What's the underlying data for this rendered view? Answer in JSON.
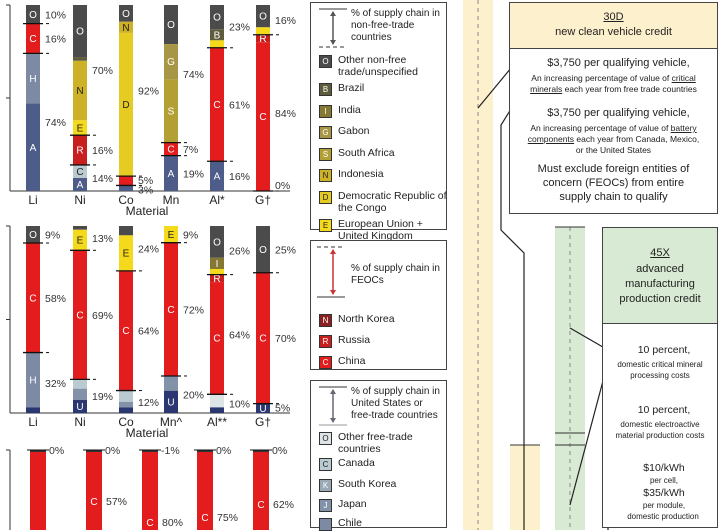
{
  "colors": {
    "O": "#4b4b4b",
    "B": "#5e5c3c",
    "I": "#857832",
    "G": "#a69645",
    "S": "#b3a035",
    "N": "#cdb126",
    "D": "#e6cb22",
    "E": "#f5da1c",
    "NK": "#8b2020",
    "R": "#c81e1e",
    "C": "#e31d1d",
    "FO": "#dce4e6",
    "FC": "#b9cbd0",
    "K": "#9aa9b6",
    "J": "#8292a9",
    "H": "#7c8aa4",
    "A": "#4d5c89",
    "U": "#2b3770",
    "cap": "#333333"
  },
  "chart_data": [
    {
      "type": "bar",
      "stacked": true,
      "xlabel": "Material",
      "ylim": [
        0,
        100
      ],
      "categories": [
        "Li",
        "Ni",
        "Co",
        "Mn",
        "Al*",
        "G†"
      ],
      "bars": [
        {
          "segs": [
            {
              "k": "O",
              "v": 10,
              "l": "O"
            },
            {
              "k": "C",
              "v": 16,
              "l": "C"
            },
            {
              "k": "H",
              "v": 27,
              "l": "H"
            },
            {
              "k": "A",
              "v": 47,
              "l": "A"
            }
          ],
          "groups": [
            [
              "10%",
              1
            ],
            [
              "16%",
              1
            ],
            [
              "74%",
              2
            ]
          ]
        },
        {
          "segs": [
            {
              "k": "O",
              "v": 28,
              "l": "O"
            },
            {
              "k": "B",
              "v": 2,
              "l": ""
            },
            {
              "k": "N",
              "v": 32,
              "l": "N"
            },
            {
              "k": "E",
              "v": 8,
              "l": "E"
            },
            {
              "k": "R",
              "v": 16,
              "l": "R"
            },
            {
              "k": "FC",
              "v": 7,
              "l": "C"
            },
            {
              "k": "A",
              "v": 7,
              "l": "A"
            }
          ],
          "groups": [
            [
              "70%",
              4
            ],
            [
              "16%",
              1
            ],
            [
              "14%",
              2
            ]
          ]
        },
        {
          "segs": [
            {
              "k": "O",
              "v": 9,
              "l": "O"
            },
            {
              "k": "N",
              "v": 6,
              "l": "N"
            },
            {
              "k": "D",
              "v": 77,
              "l": "D"
            },
            {
              "k": "C",
              "v": 5,
              "l": ""
            },
            {
              "k": "A",
              "v": 3,
              "l": ""
            }
          ],
          "groups": [
            [
              "92%",
              3
            ],
            [
              "5%",
              1
            ],
            [
              "3%",
              1
            ]
          ]
        },
        {
          "segs": [
            {
              "k": "O",
              "v": 21,
              "l": "O"
            },
            {
              "k": "G",
              "v": 19,
              "l": "G"
            },
            {
              "k": "S",
              "v": 34,
              "l": "S"
            },
            {
              "k": "C",
              "v": 7,
              "l": "C"
            },
            {
              "k": "A",
              "v": 19,
              "l": "A"
            }
          ],
          "groups": [
            [
              "74%",
              3
            ],
            [
              "7%",
              1
            ],
            [
              "19%",
              1
            ]
          ]
        },
        {
          "segs": [
            {
              "k": "O",
              "v": 13,
              "l": "O"
            },
            {
              "k": "B",
              "v": 6,
              "l": "B"
            },
            {
              "k": "E",
              "v": 4,
              "l": ""
            },
            {
              "k": "C",
              "v": 61,
              "l": "C"
            },
            {
              "k": "A",
              "v": 16,
              "l": "A"
            }
          ],
          "groups": [
            [
              "23%",
              3
            ],
            [
              "61%",
              1
            ],
            [
              "16%",
              1
            ]
          ]
        },
        {
          "segs": [
            {
              "k": "O",
              "v": 12,
              "l": "O"
            },
            {
              "k": "E",
              "v": 4,
              "l": ""
            },
            {
              "k": "R",
              "v": 4,
              "l": "R"
            },
            {
              "k": "C",
              "v": 80,
              "l": "C"
            }
          ],
          "groups": [
            [
              "16%",
              2
            ],
            [
              "84%",
              2
            ],
            [
              "0%",
              0
            ]
          ]
        }
      ]
    },
    {
      "type": "bar",
      "stacked": true,
      "xlabel": "Material",
      "ylim": [
        0,
        100
      ],
      "categories": [
        "Li",
        "Ni",
        "Co",
        "Mn^",
        "Al**",
        "G†"
      ],
      "bars": [
        {
          "segs": [
            {
              "k": "O",
              "v": 9,
              "l": "O"
            },
            {
              "k": "C",
              "v": 58,
              "l": "C"
            },
            {
              "k": "H",
              "v": 29,
              "l": "H"
            },
            {
              "k": "U",
              "v": 3,
              "l": ""
            }
          ],
          "groups": [
            [
              "9%",
              1
            ],
            [
              "58%",
              1
            ],
            [
              "32%",
              2
            ]
          ]
        },
        {
          "segs": [
            {
              "k": "O",
              "v": 2,
              "l": ""
            },
            {
              "k": "E",
              "v": 11,
              "l": "E"
            },
            {
              "k": "C",
              "v": 69,
              "l": "C"
            },
            {
              "k": "FC",
              "v": 5,
              "l": ""
            },
            {
              "k": "J",
              "v": 6,
              "l": ""
            },
            {
              "k": "U",
              "v": 7,
              "l": "U"
            }
          ],
          "groups": [
            [
              "13%",
              2
            ],
            [
              "69%",
              1
            ],
            [
              "19%",
              3
            ]
          ]
        },
        {
          "segs": [
            {
              "k": "O",
              "v": 5,
              "l": ""
            },
            {
              "k": "E",
              "v": 19,
              "l": "E"
            },
            {
              "k": "C",
              "v": 64,
              "l": "C"
            },
            {
              "k": "FC",
              "v": 6,
              "l": ""
            },
            {
              "k": "J",
              "v": 3,
              "l": ""
            },
            {
              "k": "U",
              "v": 3,
              "l": ""
            }
          ],
          "groups": [
            [
              "24%",
              2
            ],
            [
              "64%",
              1
            ],
            [
              "12%",
              3
            ]
          ]
        },
        {
          "segs": [
            {
              "k": "E",
              "v": 9,
              "l": "E"
            },
            {
              "k": "C",
              "v": 72,
              "l": "C"
            },
            {
              "k": "J",
              "v": 8,
              "l": ""
            },
            {
              "k": "U",
              "v": 12,
              "l": "U"
            }
          ],
          "groups": [
            [
              "9%",
              1
            ],
            [
              "72%",
              1
            ],
            [
              "20%",
              2
            ]
          ]
        },
        {
          "segs": [
            {
              "k": "O",
              "v": 17,
              "l": "O"
            },
            {
              "k": "I",
              "v": 6,
              "l": "I"
            },
            {
              "k": "E",
              "v": 3,
              "l": ""
            },
            {
              "k": "R",
              "v": 4,
              "l": "R"
            },
            {
              "k": "C",
              "v": 60,
              "l": "C"
            },
            {
              "k": "FO",
              "v": 7,
              "l": ""
            },
            {
              "k": "U",
              "v": 3,
              "l": ""
            }
          ],
          "groups": [
            [
              "26%",
              3
            ],
            [
              "64%",
              2
            ],
            [
              "10%",
              2
            ]
          ]
        },
        {
          "segs": [
            {
              "k": "O",
              "v": 25,
              "l": "O"
            },
            {
              "k": "C",
              "v": 70,
              "l": "C"
            },
            {
              "k": "U",
              "v": 5,
              "l": "U"
            }
          ],
          "groups": [
            [
              "25%",
              1
            ],
            [
              "70%",
              1
            ],
            [
              "5%",
              1
            ]
          ]
        }
      ]
    },
    {
      "type": "bar",
      "stacked": true,
      "partial": true,
      "bars": [
        {
          "top": "0%",
          "c": ""
        },
        {
          "top": "0%",
          "c": "57%"
        },
        {
          "top": "-1%",
          "c": "80%"
        },
        {
          "top": "0%",
          "c": "75%"
        },
        {
          "top": "0%",
          "c": "62%"
        }
      ]
    }
  ],
  "legends": {
    "nonfree": {
      "head": "% of supply chain in non-free-trade countries",
      "items": [
        {
          "code": "O",
          "k": "O",
          "label": "Other non-free trade/unspecified"
        },
        {
          "code": "B",
          "k": "B",
          "label": "Brazil"
        },
        {
          "code": "I",
          "k": "I",
          "label": "India"
        },
        {
          "code": "G",
          "k": "G",
          "label": "Gabon"
        },
        {
          "code": "S",
          "k": "S",
          "label": "South Africa"
        },
        {
          "code": "N",
          "k": "N",
          "label": "Indonesia"
        },
        {
          "code": "D",
          "k": "D",
          "label": "Democratic Republic of the Congo"
        },
        {
          "code": "E",
          "k": "E",
          "label": "European Union + United Kingdom"
        }
      ]
    },
    "feoc": {
      "head": "% of supply chain in FEOCs",
      "items": [
        {
          "code": "N",
          "k": "NK",
          "label": "North Korea"
        },
        {
          "code": "R",
          "k": "R",
          "label": "Russia"
        },
        {
          "code": "C",
          "k": "C",
          "label": "China"
        }
      ]
    },
    "free": {
      "head": "% of supply chain in United States or free-trade countries",
      "items": [
        {
          "code": "O",
          "k": "FO",
          "label": "Other free-trade countries"
        },
        {
          "code": "C",
          "k": "FC",
          "label": "Canada"
        },
        {
          "code": "K",
          "k": "K",
          "label": "South Korea"
        },
        {
          "code": "J",
          "k": "J",
          "label": "Japan"
        },
        {
          "code": "",
          "k": "H",
          "label": "Chile"
        }
      ]
    }
  },
  "diagram": {
    "credit30d": {
      "code": "30D",
      "name": "new clean vehicle credit",
      "b1_title": "$3,750 per qualifying vehicle,",
      "b1_l1a": "An increasing percentage of value of ",
      "b1_l1u": "critical",
      "b1_l2u": "minerals",
      "b1_l2b": " each year from free trade countries",
      "b2_title": "$3,750 per qualifying vehicle,",
      "b2_l1a": "An increasing percentage of value of ",
      "b2_l1u": "battery",
      "b2_l2u": "components",
      "b2_l2b": " each year from Canada, Mexico,",
      "b2_l3": "or the United States",
      "feoc1": "Must exclude foreign entities of",
      "feoc2": "concern (FEOCs) from entire",
      "feoc3": "supply chain to qualify"
    },
    "credit45x": {
      "code": "45X",
      "l1": "advanced",
      "l2": "manufacturing",
      "l3": "production credit",
      "i1_title": "10 percent,",
      "i1_l1": "domestic critical mineral",
      "i1_l2": "processing costs",
      "i2_title": "10 percent,",
      "i2_l1": "domestic electroactive",
      "i2_l2": "material production costs",
      "i3_l1": "$10/kWh",
      "i3_l2": "per cell,",
      "i3_l3": "$35/kWh",
      "i3_l4": "per module,",
      "i3_l5": "domestic production"
    },
    "colors": {
      "yellow": "#fdf0cc",
      "green": "#d8ead3"
    }
  }
}
